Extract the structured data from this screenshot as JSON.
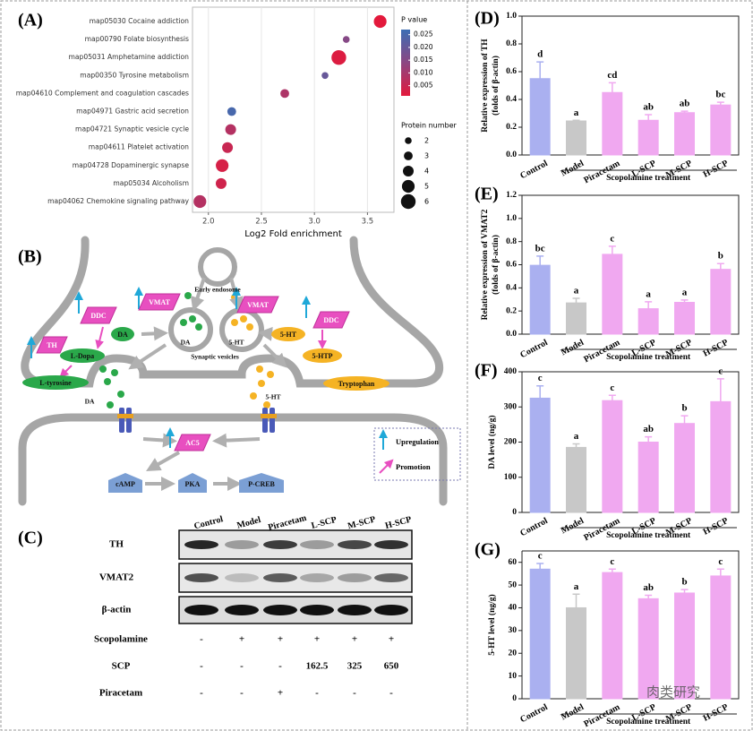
{
  "chart_data": [
    {
      "type": "bubble",
      "label": "(A)",
      "xlabel": "Log2 Fold enrichment",
      "categories": [
        "map05030 Cocaine addiction",
        "map00790 Folate biosynthesis",
        "map05031 Amphetamine addiction",
        "map00350 Tyrosine metabolism",
        "map04610 Complement and coagulation cascades",
        "map04971 Gastric acid secretion",
        "map04721 Synaptic vesicle cycle",
        "map04611 Platelet activation",
        "map04728 Dopaminergic synapse",
        "map05034 Alcoholism",
        "map04062 Chemokine signaling pathway"
      ],
      "x": [
        3.62,
        3.3,
        3.23,
        3.1,
        2.72,
        2.22,
        2.21,
        2.18,
        2.13,
        2.12,
        1.92
      ],
      "sizes": [
        5,
        2,
        6,
        2,
        3,
        3,
        4,
        4,
        5,
        4,
        5
      ],
      "pvalues": [
        0.001,
        0.015,
        0.002,
        0.02,
        0.009,
        0.025,
        0.008,
        0.005,
        0.003,
        0.004,
        0.008
      ],
      "xlim": [
        1.85,
        3.75
      ],
      "xticks": [
        {
          "value": 2,
          "label": "2.0"
        },
        2.5,
        {
          "value": 3,
          "label": "3.0"
        },
        3.5
      ],
      "grid": true,
      "color_legend": {
        "title": "P value",
        "lim": [
          0.001,
          0.027
        ],
        "colors": [
          "#e3193c",
          "#8c4682",
          "#3c6eb4"
        ],
        "ticks": [
          0.025,
          {
            "value": 0.02,
            "label": "0.020"
          },
          0.015,
          {
            "value": 0.01,
            "label": "0.010"
          },
          0.005
        ]
      },
      "size_legend": {
        "title": "Protein number",
        "values": [
          2,
          3,
          4,
          5,
          6
        ]
      }
    },
    {
      "type": "bar",
      "label": "(D)",
      "ylabel": [
        "Relative expression of TH",
        "(folds of β-actin)"
      ],
      "xlabel": "Scopolamine treatment",
      "categories": [
        "Control",
        "Model",
        "Piracetam",
        "L-SCP",
        "M-SCP",
        "H-SCP"
      ],
      "colors": [
        "#aab0f0",
        "#c8c8c8",
        "#f0a8f0",
        "#f0a8f0",
        "#f0a8f0",
        "#f0a8f0"
      ],
      "values": [
        0.55,
        0.245,
        0.45,
        0.25,
        0.305,
        0.36
      ],
      "errors": [
        0.12,
        0.005,
        0.07,
        0.04,
        0.01,
        0.02
      ],
      "letters": [
        "d",
        "a",
        "cd",
        "ab",
        "ab",
        "bc"
      ],
      "ylim": [
        0,
        1
      ],
      "yticks": [
        {
          "value": 0,
          "label": "0.0"
        },
        0.2,
        0.4,
        0.6,
        0.8,
        {
          "value": 1,
          "label": "1.0"
        }
      ]
    },
    {
      "type": "bar",
      "label": "(E)",
      "ylabel": [
        "Relative expression of VMAT2",
        "(folds of β-actin)"
      ],
      "xlabel": "Scopolamine treatment",
      "categories": [
        "Control",
        "Model",
        "Piracetam",
        "L-SCP",
        "M-SCP",
        "H-SCP"
      ],
      "colors": [
        "#aab0f0",
        "#c8c8c8",
        "#f0a8f0",
        "#f0a8f0",
        "#f0a8f0",
        "#f0a8f0"
      ],
      "values": [
        0.595,
        0.27,
        0.69,
        0.22,
        0.275,
        0.56
      ],
      "errors": [
        0.08,
        0.04,
        0.07,
        0.06,
        0.02,
        0.05
      ],
      "letters": [
        "bc",
        "a",
        "c",
        "a",
        "a",
        "b"
      ],
      "ylim": [
        0,
        1.2
      ],
      "yticks": [
        {
          "value": 0,
          "label": "0.0"
        },
        0.2,
        0.4,
        0.6,
        0.8,
        {
          "value": 1,
          "label": "1.0"
        },
        1.2
      ]
    },
    {
      "type": "bar",
      "label": "(F)",
      "ylabel": [
        "DA level (ng/g)"
      ],
      "xlabel": "Scopolamine treatment",
      "categories": [
        "Control",
        "Model",
        "Piracetam",
        "L-SCP",
        "M-SCP",
        "H-SCP"
      ],
      "colors": [
        "#aab0f0",
        "#c8c8c8",
        "#f0a8f0",
        "#f0a8f0",
        "#f0a8f0",
        "#f0a8f0"
      ],
      "values": [
        325,
        185,
        318,
        200,
        253,
        315
      ],
      "errors": [
        35,
        10,
        15,
        15,
        22,
        65
      ],
      "letters": [
        "c",
        "a",
        "c",
        "ab",
        "b",
        "c"
      ],
      "ylim": [
        0,
        400
      ],
      "yticks": [
        0,
        100,
        200,
        300,
        400
      ]
    },
    {
      "type": "bar",
      "label": "(G)",
      "ylabel": [
        "5-HT level (ng/g)"
      ],
      "xlabel": "Scopolamine treatment",
      "categories": [
        "Control",
        "Model",
        "Piracetam",
        "L-SCP",
        "M-SCP",
        "H-SCP"
      ],
      "colors": [
        "#aab0f0",
        "#c8c8c8",
        "#f0a8f0",
        "#f0a8f0",
        "#f0a8f0",
        "#f0a8f0"
      ],
      "values": [
        57,
        40,
        55.5,
        44,
        46.5,
        54
      ],
      "errors": [
        2.5,
        6,
        1.5,
        1.5,
        1.5,
        3
      ],
      "letters": [
        "c",
        "a",
        "c",
        "ab",
        "b",
        "c"
      ],
      "ylim": [
        0,
        65
      ],
      "yticks": [
        0,
        10,
        20,
        30,
        40,
        50,
        60
      ]
    }
  ],
  "pathway": {
    "label": "(B)",
    "nodes": [
      "Early endosome",
      "VMAT",
      "VMAT",
      "DDC",
      "DDC",
      "TH",
      "L-Dopa",
      "DA",
      "DA",
      "5-HT",
      "5-HT",
      "5-HTP",
      "L-tyrosine",
      "Tryptophan",
      "Synaptic vesicles",
      "DA",
      "5-HT",
      "AC5",
      "cAMP",
      "PKA",
      "P-CREB"
    ],
    "legend": [
      "Upregulation",
      "Promotion"
    ]
  },
  "blot": {
    "label": "(C)",
    "columns": [
      "Control",
      "Model",
      "Piracetam",
      "L-SCP",
      "M-SCP",
      "H-SCP"
    ],
    "bands": [
      "TH",
      "VMAT2",
      "β-actin"
    ],
    "treatments": [
      {
        "name": "Scopolamine",
        "values": [
          "-",
          "+",
          "+",
          "+",
          "+",
          "+"
        ]
      },
      {
        "name": "SCP",
        "values": [
          "-",
          "-",
          "-",
          162.5,
          325,
          650
        ]
      },
      {
        "name": "Piracetam",
        "values": [
          "-",
          "-",
          "+",
          "-",
          "-",
          "-"
        ]
      }
    ]
  },
  "watermark": "肉类研究"
}
